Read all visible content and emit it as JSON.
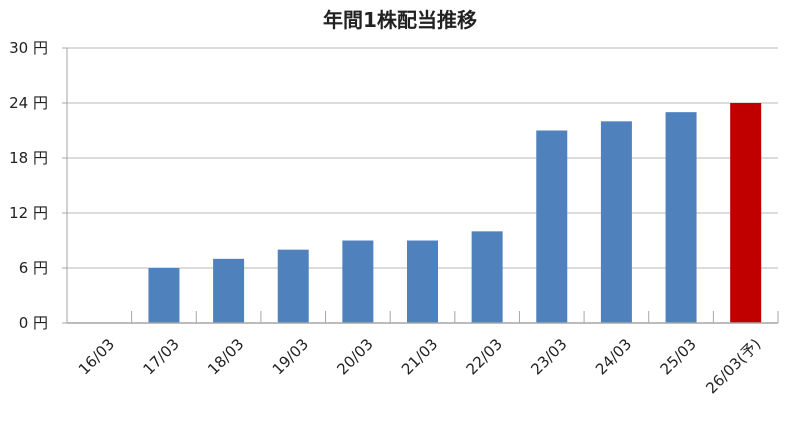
{
  "chart_data": {
    "type": "bar",
    "title": "年間1株配当推移",
    "categories": [
      "16/03",
      "17/03",
      "18/03",
      "19/03",
      "20/03",
      "21/03",
      "22/03",
      "23/03",
      "24/03",
      "25/03",
      "26/03(予)"
    ],
    "values": [
      0,
      6,
      7,
      8,
      9,
      9,
      10,
      21,
      22,
      23,
      24
    ],
    "unit": "円",
    "yticks": [
      "0 円",
      "6 円",
      "12 円",
      "18 円",
      "24 円",
      "30 円"
    ],
    "ylim": [
      0,
      30
    ],
    "grid": true,
    "legend": "none",
    "colors": {
      "actual": "#4f81bd",
      "forecast": "#c00000",
      "grid": "#c8c8c8",
      "axis": "#a6a6a6"
    },
    "highlight_index": 10
  }
}
